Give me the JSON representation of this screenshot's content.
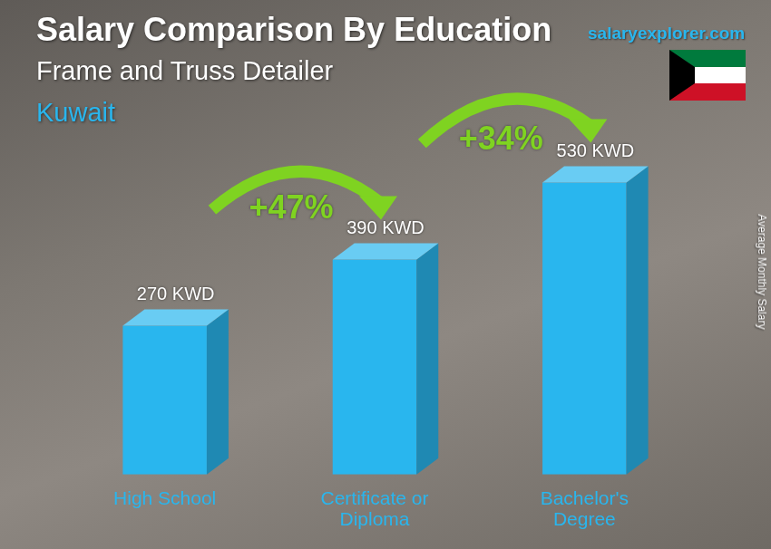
{
  "chart_data": {
    "type": "bar",
    "title": "Salary Comparison By Education",
    "subtitle": "Frame and Truss Detailer",
    "location": "Kuwait",
    "source": "salaryexplorer.com",
    "y_label": "Average Monthly Salary",
    "categories": [
      "High School",
      "Certificate or Diploma",
      "Bachelor's Degree"
    ],
    "values": [
      270,
      390,
      530
    ],
    "value_labels": [
      "270 KWD",
      "390 KWD",
      "530 KWD"
    ],
    "data_labels": true,
    "annotations": [
      "+47%",
      "+34%"
    ],
    "color": "#29b6ee",
    "ylim": [
      0,
      700
    ],
    "grid": false,
    "tick_labels": "x"
  }
}
